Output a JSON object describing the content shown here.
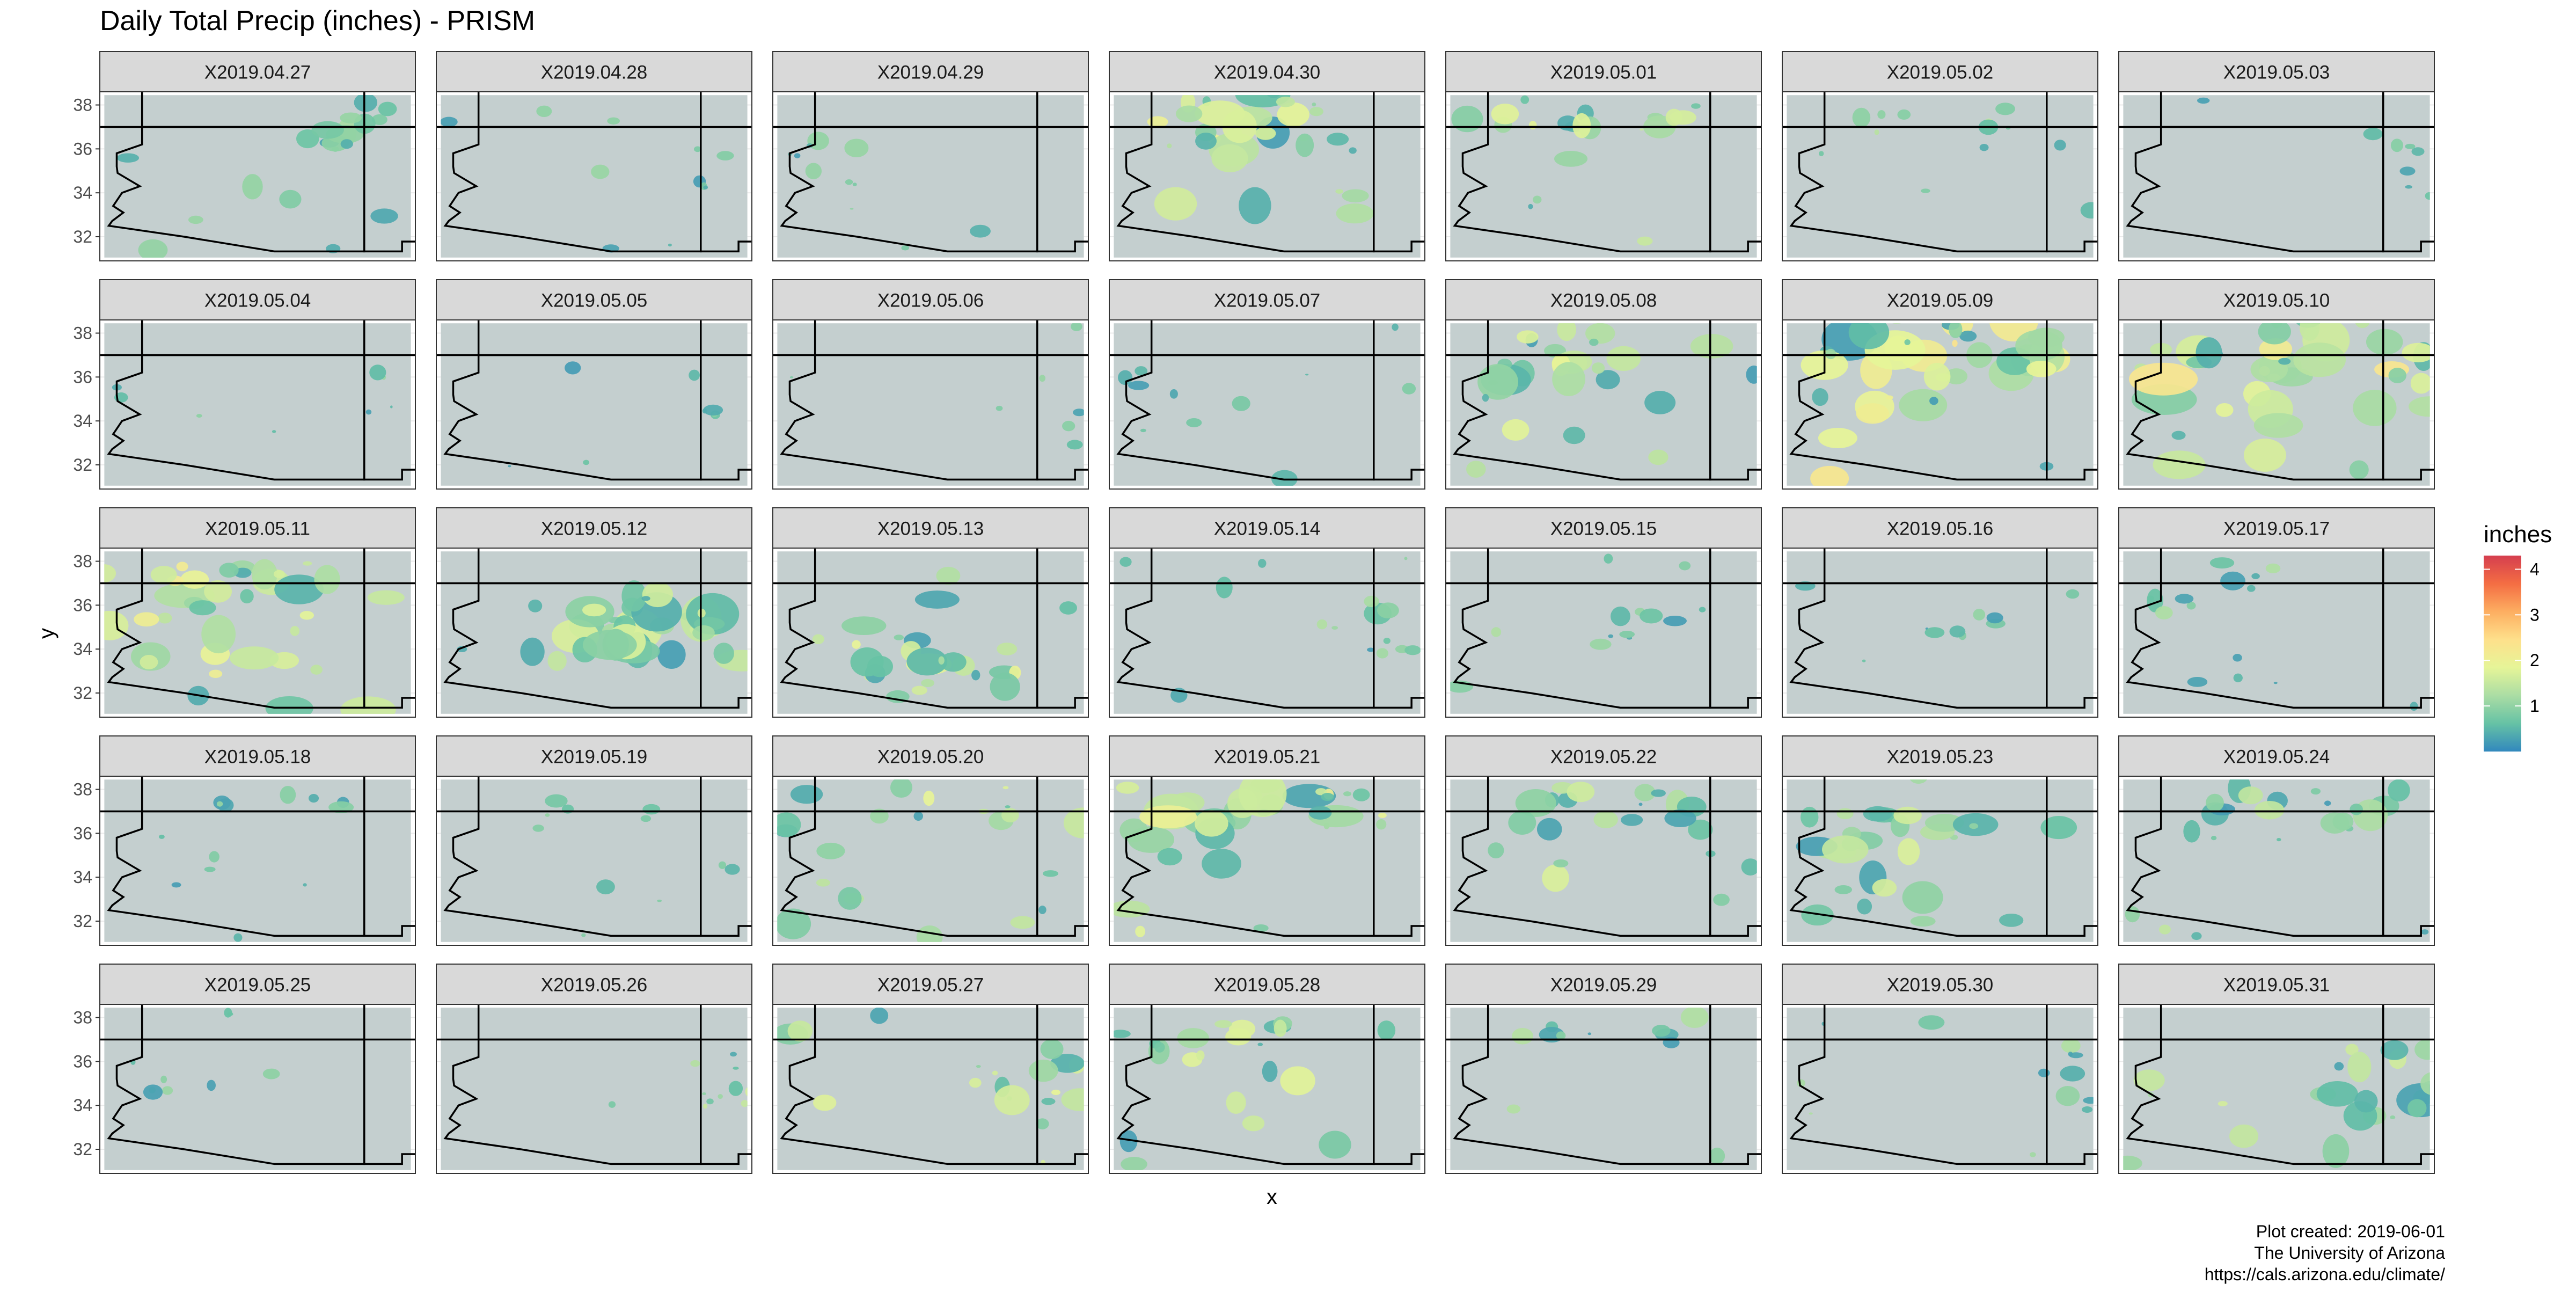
{
  "chart_data": {
    "type": "heatmap",
    "title": "Daily Total Precip (inches) - PRISM",
    "xlabel": "x",
    "ylabel": "y",
    "y_ticks": [
      "32",
      "34",
      "36",
      "38"
    ],
    "y_tick_values": [
      32,
      34,
      36,
      38
    ],
    "ylim": [
      30.9,
      38.6
    ],
    "xlim": [
      -115.0,
      -107.9
    ],
    "grid": true,
    "facet_layout": {
      "columns": 7,
      "rows": 5
    },
    "facets": [
      {
        "label": "X2019.04.27",
        "coverage": 0.3,
        "intensity": 0.25,
        "focus": "northeast"
      },
      {
        "label": "X2019.04.28",
        "coverage": 0.1,
        "intensity": 0.2,
        "focus": "east"
      },
      {
        "label": "X2019.04.29",
        "coverage": 0.12,
        "intensity": 0.2,
        "focus": "west"
      },
      {
        "label": "X2019.04.30",
        "coverage": 0.55,
        "intensity": 0.45,
        "focus": "north"
      },
      {
        "label": "X2019.05.01",
        "coverage": 0.3,
        "intensity": 0.4,
        "focus": "north"
      },
      {
        "label": "X2019.05.02",
        "coverage": 0.15,
        "intensity": 0.3,
        "focus": "north"
      },
      {
        "label": "X2019.05.03",
        "coverage": 0.05,
        "intensity": 0.2,
        "focus": "east"
      },
      {
        "label": "X2019.05.04",
        "coverage": 0.05,
        "intensity": 0.2,
        "focus": "east"
      },
      {
        "label": "X2019.05.05",
        "coverage": 0.05,
        "intensity": 0.2,
        "focus": "east"
      },
      {
        "label": "X2019.05.06",
        "coverage": 0.03,
        "intensity": 0.2,
        "focus": "east"
      },
      {
        "label": "X2019.05.07",
        "coverage": 0.12,
        "intensity": 0.2,
        "focus": "west"
      },
      {
        "label": "X2019.05.08",
        "coverage": 0.45,
        "intensity": 0.4,
        "focus": "northwest"
      },
      {
        "label": "X2019.05.09",
        "coverage": 0.7,
        "intensity": 0.5,
        "focus": "north"
      },
      {
        "label": "X2019.05.10",
        "coverage": 0.75,
        "intensity": 0.5,
        "focus": "north"
      },
      {
        "label": "X2019.05.11",
        "coverage": 0.7,
        "intensity": 0.45,
        "focus": "northwest"
      },
      {
        "label": "X2019.05.12",
        "coverage": 0.65,
        "intensity": 0.35,
        "focus": "central"
      },
      {
        "label": "X2019.05.13",
        "coverage": 0.45,
        "intensity": 0.4,
        "focus": "south"
      },
      {
        "label": "X2019.05.14",
        "coverage": 0.2,
        "intensity": 0.25,
        "focus": "east"
      },
      {
        "label": "X2019.05.15",
        "coverage": 0.15,
        "intensity": 0.25,
        "focus": "central"
      },
      {
        "label": "X2019.05.16",
        "coverage": 0.08,
        "intensity": 0.2,
        "focus": "central"
      },
      {
        "label": "X2019.05.17",
        "coverage": 0.2,
        "intensity": 0.25,
        "focus": "northwest"
      },
      {
        "label": "X2019.05.18",
        "coverage": 0.15,
        "intensity": 0.25,
        "focus": "north"
      },
      {
        "label": "X2019.05.19",
        "coverage": 0.12,
        "intensity": 0.2,
        "focus": "north"
      },
      {
        "label": "X2019.05.20",
        "coverage": 0.35,
        "intensity": 0.4,
        "focus": "north"
      },
      {
        "label": "X2019.05.21",
        "coverage": 0.6,
        "intensity": 0.45,
        "focus": "north"
      },
      {
        "label": "X2019.05.22",
        "coverage": 0.35,
        "intensity": 0.35,
        "focus": "north"
      },
      {
        "label": "X2019.05.23",
        "coverage": 0.5,
        "intensity": 0.35,
        "focus": "northwest"
      },
      {
        "label": "X2019.05.24",
        "coverage": 0.4,
        "intensity": 0.3,
        "focus": "north"
      },
      {
        "label": "X2019.05.25",
        "coverage": 0.06,
        "intensity": 0.2,
        "focus": "west"
      },
      {
        "label": "X2019.05.26",
        "coverage": 0.12,
        "intensity": 0.45,
        "focus": "east"
      },
      {
        "label": "X2019.05.27",
        "coverage": 0.35,
        "intensity": 0.4,
        "focus": "east"
      },
      {
        "label": "X2019.05.28",
        "coverage": 0.35,
        "intensity": 0.4,
        "focus": "northwest"
      },
      {
        "label": "X2019.05.29",
        "coverage": 0.12,
        "intensity": 0.3,
        "focus": "north"
      },
      {
        "label": "X2019.05.30",
        "coverage": 0.2,
        "intensity": 0.25,
        "focus": "east"
      },
      {
        "label": "X2019.05.31",
        "coverage": 0.45,
        "intensity": 0.35,
        "focus": "east"
      }
    ],
    "legend": {
      "title": "inches",
      "position": "right",
      "ticks": [
        1,
        2,
        3,
        4
      ],
      "tick_labels": [
        "1",
        "2",
        "3",
        "4"
      ],
      "range": [
        0,
        4.3
      ],
      "colors": [
        "#3288bd",
        "#66c2a5",
        "#abdda4",
        "#e6f598",
        "#fee08b",
        "#fdae61",
        "#f46d43",
        "#d53e4f"
      ]
    },
    "caption": [
      "Plot created: 2019-06-01",
      "The University of Arizona",
      "https://cals.arizona.edu/climate/"
    ]
  },
  "colors": {
    "map_fill": "#c4cfcf",
    "strip_fill": "#d9d9d9",
    "strip_border": "#333333",
    "boundary": "#000000",
    "gridline": "#ebebeb"
  }
}
